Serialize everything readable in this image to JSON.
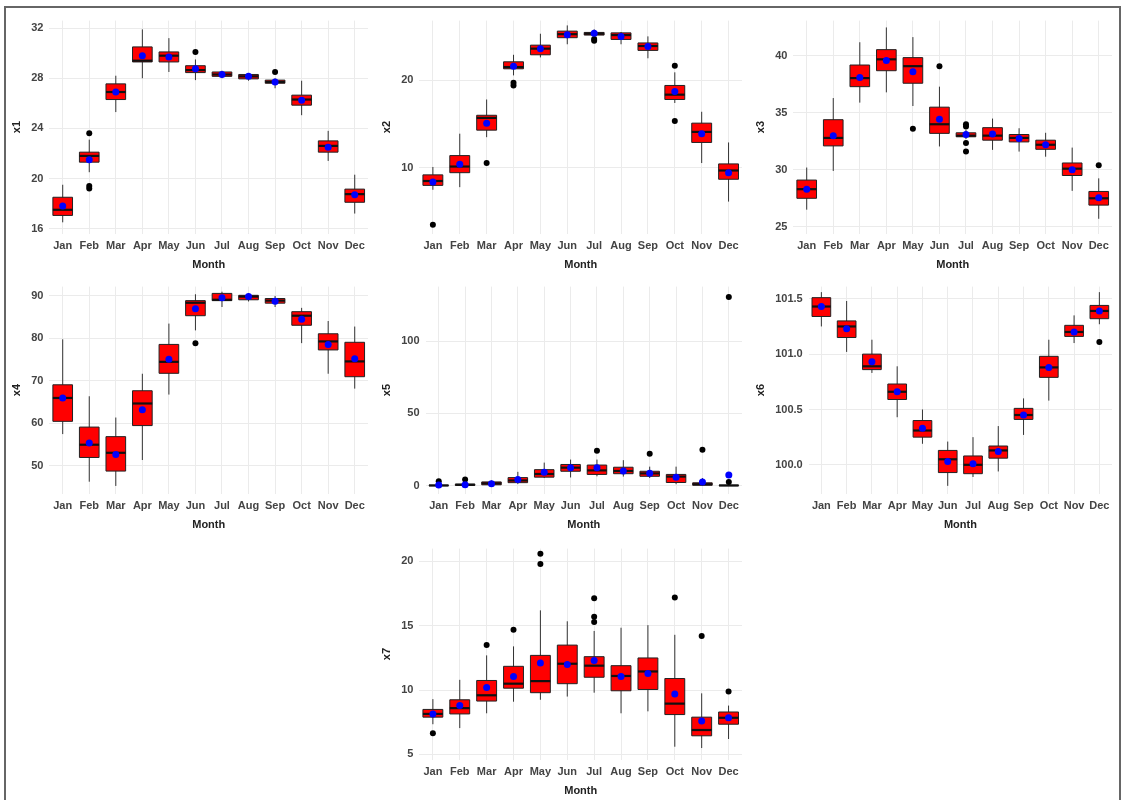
{
  "chart_data": [
    {
      "type": "box",
      "xlabel": "Month",
      "ylabel": "x1",
      "categories": [
        "Jan",
        "Feb",
        "Mar",
        "Apr",
        "May",
        "Jun",
        "Jul",
        "Aug",
        "Sep",
        "Oct",
        "Nov",
        "Dec"
      ],
      "color": "#ff0000",
      "grid": true,
      "ylim": [
        15.6,
        32.6
      ],
      "yticks": [
        16,
        20,
        24,
        28,
        32
      ],
      "boxes": [
        {
          "low": 16.5,
          "q1": 17.05,
          "median": 17.5,
          "q3": 18.5,
          "high": 19.5,
          "mean": 17.8
        },
        {
          "low": 20.5,
          "q1": 21.3,
          "median": 21.8,
          "q3": 22.1,
          "high": 23.1,
          "mean": 21.5,
          "outliers": [
            23.6,
            19.4,
            19.2
          ]
        },
        {
          "low": 25.3,
          "q1": 26.3,
          "median": 26.9,
          "q3": 27.55,
          "high": 28.2,
          "mean": 26.9
        },
        {
          "low": 28.0,
          "q1": 29.3,
          "median": 29.4,
          "q3": 30.5,
          "high": 31.9,
          "mean": 29.8
        },
        {
          "low": 28.5,
          "q1": 29.3,
          "median": 29.8,
          "q3": 30.1,
          "high": 31.2,
          "mean": 29.7
        },
        {
          "low": 27.85,
          "q1": 28.45,
          "median": 28.65,
          "q3": 29.0,
          "high": 29.5,
          "mean": 28.75,
          "outliers": [
            30.1
          ]
        },
        {
          "low": 28.0,
          "q1": 28.15,
          "median": 28.3,
          "q3": 28.5,
          "high": 28.6,
          "mean": 28.3
        },
        {
          "low": 27.8,
          "q1": 27.95,
          "median": 28.15,
          "q3": 28.3,
          "high": 28.4,
          "mean": 28.15
        },
        {
          "low": 27.2,
          "q1": 27.6,
          "median": 27.7,
          "q3": 27.85,
          "high": 28.0,
          "mean": 27.7,
          "outliers": [
            28.5
          ]
        },
        {
          "low": 25.05,
          "q1": 25.85,
          "median": 26.3,
          "q3": 26.65,
          "high": 27.8,
          "mean": 26.25
        },
        {
          "low": 21.4,
          "q1": 22.1,
          "median": 22.6,
          "q3": 23.0,
          "high": 23.8,
          "mean": 22.5
        },
        {
          "low": 17.2,
          "q1": 18.1,
          "median": 18.75,
          "q3": 19.15,
          "high": 20.3,
          "mean": 18.7
        }
      ]
    },
    {
      "type": "box",
      "xlabel": "Month",
      "ylabel": "x2",
      "categories": [
        "Jan",
        "Feb",
        "Mar",
        "Apr",
        "May",
        "Jun",
        "Jul",
        "Aug",
        "Sep",
        "Oct",
        "Nov",
        "Dec"
      ],
      "color": "#ff0000",
      "grid": true,
      "ylim": [
        2.5,
        26.8
      ],
      "yticks": [
        10,
        20
      ],
      "boxes": [
        {
          "low": 7.5,
          "q1": 8.0,
          "median": 8.5,
          "q3": 9.2,
          "high": 10.1,
          "mean": 8.4,
          "outliers": [
            3.5
          ]
        },
        {
          "low": 7.8,
          "q1": 9.45,
          "median": 10.15,
          "q3": 11.4,
          "high": 13.9,
          "mean": 10.4
        },
        {
          "low": 13.5,
          "q1": 14.3,
          "median": 15.7,
          "q3": 16.0,
          "high": 17.8,
          "mean": 15.1,
          "outliers": [
            10.55
          ]
        },
        {
          "low": 20.55,
          "q1": 21.3,
          "median": 21.5,
          "q3": 22.1,
          "high": 22.9,
          "mean": 21.6,
          "outliers": [
            19.7,
            19.4
          ]
        },
        {
          "low": 22.6,
          "q1": 22.9,
          "median": 23.6,
          "q3": 24.0,
          "high": 25.3,
          "mean": 23.6
        },
        {
          "low": 24.1,
          "q1": 24.85,
          "median": 25.25,
          "q3": 25.6,
          "high": 26.25,
          "mean": 25.2
        },
        {
          "low": 25.0,
          "q1": 25.15,
          "median": 25.3,
          "q3": 25.45,
          "high": 25.8,
          "mean": 25.35,
          "outliers": [
            24.7,
            24.5
          ]
        },
        {
          "low": 24.1,
          "q1": 24.65,
          "median": 25.15,
          "q3": 25.4,
          "high": 25.5,
          "mean": 25.0
        },
        {
          "low": 22.5,
          "q1": 23.4,
          "median": 23.9,
          "q3": 24.25,
          "high": 25.0,
          "mean": 23.85
        },
        {
          "low": 17.4,
          "q1": 17.8,
          "median": 18.35,
          "q3": 19.4,
          "high": 20.9,
          "mean": 18.7,
          "outliers": [
            21.65,
            15.35
          ]
        },
        {
          "low": 10.55,
          "q1": 12.9,
          "median": 14.1,
          "q3": 15.1,
          "high": 16.4,
          "mean": 13.9
        },
        {
          "low": 6.15,
          "q1": 8.7,
          "median": 9.7,
          "q3": 10.45,
          "high": 12.9,
          "mean": 9.45
        }
      ]
    },
    {
      "type": "box",
      "xlabel": "Month",
      "ylabel": "x3",
      "categories": [
        "Jan",
        "Feb",
        "Mar",
        "Apr",
        "May",
        "Jun",
        "Jul",
        "Aug",
        "Sep",
        "Oct",
        "Nov",
        "Dec"
      ],
      "color": "#ff0000",
      "grid": true,
      "ylim": [
        24.4,
        43.1
      ],
      "yticks": [
        25,
        30,
        35,
        40
      ],
      "boxes": [
        {
          "low": 26.5,
          "q1": 27.5,
          "median": 28.3,
          "q3": 29.1,
          "high": 30.2,
          "mean": 28.3
        },
        {
          "low": 29.9,
          "q1": 32.1,
          "median": 32.8,
          "q3": 34.4,
          "high": 36.3,
          "mean": 33.0
        },
        {
          "low": 35.9,
          "q1": 37.3,
          "median": 38.05,
          "q3": 39.2,
          "high": 41.2,
          "mean": 38.1
        },
        {
          "low": 36.8,
          "q1": 38.7,
          "median": 39.7,
          "q3": 40.55,
          "high": 42.5,
          "mean": 39.6
        },
        {
          "low": 35.6,
          "q1": 37.6,
          "median": 39.1,
          "q3": 39.85,
          "high": 41.65,
          "mean": 38.6,
          "outliers": [
            33.6
          ]
        },
        {
          "low": 32.05,
          "q1": 33.2,
          "median": 34.0,
          "q3": 35.5,
          "high": 37.3,
          "mean": 34.45,
          "outliers": [
            39.1
          ]
        },
        {
          "low": 32.7,
          "q1": 32.9,
          "median": 33.0,
          "q3": 33.25,
          "high": 33.5,
          "mean": 33.1,
          "outliers": [
            34.0,
            33.8,
            32.35,
            31.6
          ]
        },
        {
          "low": 31.75,
          "q1": 32.6,
          "median": 33.0,
          "q3": 33.7,
          "high": 34.5,
          "mean": 33.15
        },
        {
          "low": 31.6,
          "q1": 32.45,
          "median": 32.8,
          "q3": 33.1,
          "high": 33.65,
          "mean": 32.75
        },
        {
          "low": 31.15,
          "q1": 31.8,
          "median": 32.2,
          "q3": 32.6,
          "high": 33.25,
          "mean": 32.2
        },
        {
          "low": 28.15,
          "q1": 29.5,
          "median": 30.1,
          "q3": 30.6,
          "high": 31.95,
          "mean": 30.0
        },
        {
          "low": 25.7,
          "q1": 26.9,
          "median": 27.5,
          "q3": 28.1,
          "high": 29.25,
          "mean": 27.55,
          "outliers": [
            30.4
          ]
        }
      ]
    },
    {
      "type": "box",
      "xlabel": "Month",
      "ylabel": "x4",
      "categories": [
        "Jan",
        "Feb",
        "Mar",
        "Apr",
        "May",
        "Jun",
        "Jul",
        "Aug",
        "Sep",
        "Oct",
        "Nov",
        "Dec"
      ],
      "color": "#ff0000",
      "grid": true,
      "ylim": [
        43.5,
        92.2
      ],
      "yticks": [
        50,
        60,
        70,
        80,
        90
      ],
      "boxes": [
        {
          "low": 57.5,
          "q1": 60.5,
          "median": 66.0,
          "q3": 69.1,
          "high": 79.8,
          "mean": 66.0
        },
        {
          "low": 46.3,
          "q1": 52.0,
          "median": 55.0,
          "q3": 59.15,
          "high": 66.4,
          "mean": 55.4
        },
        {
          "low": 45.3,
          "q1": 48.8,
          "median": 53.1,
          "q3": 56.9,
          "high": 61.4,
          "mean": 52.7
        },
        {
          "low": 51.4,
          "q1": 59.5,
          "median": 64.7,
          "q3": 67.7,
          "high": 71.7,
          "mean": 63.2
        },
        {
          "low": 66.8,
          "q1": 71.8,
          "median": 74.5,
          "q3": 78.6,
          "high": 83.5,
          "mean": 75.1
        },
        {
          "low": 81.9,
          "q1": 85.35,
          "median": 88.4,
          "q3": 88.9,
          "high": 90.4,
          "mean": 87.0,
          "outliers": [
            78.9
          ]
        },
        {
          "low": 87.4,
          "q1": 88.9,
          "median": 89.1,
          "q3": 90.6,
          "high": 91.0,
          "mean": 89.6
        },
        {
          "low": 88.7,
          "q1": 89.1,
          "median": 89.85,
          "q3": 90.15,
          "high": 90.7,
          "mean": 89.85
        },
        {
          "low": 87.4,
          "q1": 88.3,
          "median": 88.9,
          "q3": 89.4,
          "high": 90.0,
          "mean": 88.75
        },
        {
          "low": 78.9,
          "q1": 83.1,
          "median": 85.35,
          "q3": 86.3,
          "high": 87.2,
          "mean": 84.5
        },
        {
          "low": 71.7,
          "q1": 77.3,
          "median": 79.3,
          "q3": 81.1,
          "high": 84.1,
          "mean": 78.6
        },
        {
          "low": 68.2,
          "q1": 71.0,
          "median": 74.6,
          "q3": 79.1,
          "high": 82.8,
          "mean": 75.2
        }
      ]
    },
    {
      "type": "box",
      "xlabel": "Month",
      "ylabel": "x5",
      "categories": [
        "Jan",
        "Feb",
        "Mar",
        "Apr",
        "May",
        "Jun",
        "Jul",
        "Aug",
        "Sep",
        "Oct",
        "Nov",
        "Dec"
      ],
      "color": "#ff0000",
      "grid": true,
      "ylim": [
        -5.6,
        138
      ],
      "yticks": [
        0,
        50,
        100
      ],
      "boxes": [
        {
          "low": 0,
          "q1": 0,
          "median": 0,
          "q3": 0.3,
          "high": 0.8,
          "mean": 0.3,
          "outliers": [
            3
          ]
        },
        {
          "low": 0,
          "q1": 0.1,
          "median": 0.5,
          "q3": 1,
          "high": 2,
          "mean": 0.5,
          "outliers": [
            4.1
          ]
        },
        {
          "low": 0,
          "q1": 0.5,
          "median": 1.5,
          "q3": 2.5,
          "high": 3.5,
          "mean": 1.3
        },
        {
          "low": 1,
          "q1": 2,
          "median": 3.5,
          "q3": 5.5,
          "high": 9.5,
          "mean": 4.1
        },
        {
          "low": 5.2,
          "q1": 5.8,
          "median": 8,
          "q3": 11,
          "high": 15.9,
          "mean": 9.2
        },
        {
          "low": 5.6,
          "q1": 9.9,
          "median": 12.4,
          "q3": 14.6,
          "high": 18,
          "mean": 12.4
        },
        {
          "low": 6.4,
          "q1": 7.7,
          "median": 10.5,
          "q3": 14.2,
          "high": 18,
          "mean": 12.4,
          "outliers": [
            24.2
          ]
        },
        {
          "low": 6.2,
          "q1": 8.2,
          "median": 10.1,
          "q3": 12.7,
          "high": 17.6,
          "mean": 10.1
        },
        {
          "low": 5.2,
          "q1": 6.4,
          "median": 8.4,
          "q3": 9.9,
          "high": 13.1,
          "mean": 8.6,
          "outliers": [
            22.1
          ]
        },
        {
          "low": 0.9,
          "q1": 2.1,
          "median": 6.2,
          "q3": 7.7,
          "high": 13.1,
          "mean": 5.8
        },
        {
          "low": 0,
          "q1": 0.2,
          "median": 0.9,
          "q3": 1.9,
          "high": 5.2,
          "mean": 2.4,
          "outliers": [
            24.9
          ]
        },
        {
          "low": 0,
          "q1": 0,
          "median": 0,
          "q3": 0.3,
          "high": 0.8,
          "mean": 7.3,
          "outliers": [
            130.7,
            2.4
          ]
        }
      ]
    },
    {
      "type": "box",
      "xlabel": "Month",
      "ylabel": "x6",
      "categories": [
        "Jan",
        "Feb",
        "Mar",
        "Apr",
        "May",
        "Jun",
        "Jul",
        "Aug",
        "Sep",
        "Oct",
        "Nov",
        "Dec"
      ],
      "color": "#ff0000",
      "grid": true,
      "ylim": [
        99.74,
        101.61
      ],
      "yticks": [
        {
          "value": 100,
          "label": "100.0"
        },
        100.5,
        {
          "value": 101,
          "label": "101.0"
        },
        101.5
      ],
      "boxes": [
        {
          "low": 101.25,
          "q1": 101.34,
          "median": 101.43,
          "q3": 101.51,
          "high": 101.56,
          "mean": 101.43
        },
        {
          "low": 101.02,
          "q1": 101.15,
          "median": 101.25,
          "q3": 101.3,
          "high": 101.48,
          "mean": 101.23
        },
        {
          "low": 100.83,
          "q1": 100.86,
          "median": 100.89,
          "q3": 101.0,
          "high": 101.13,
          "mean": 100.93
        },
        {
          "low": 100.43,
          "q1": 100.59,
          "median": 100.66,
          "q3": 100.73,
          "high": 100.89,
          "mean": 100.66
        },
        {
          "low": 100.19,
          "q1": 100.25,
          "median": 100.31,
          "q3": 100.4,
          "high": 100.5,
          "mean": 100.33
        },
        {
          "low": 99.81,
          "q1": 99.93,
          "median": 100.05,
          "q3": 100.13,
          "high": 100.21,
          "mean": 100.03
        },
        {
          "low": 99.89,
          "q1": 99.92,
          "median": 100.0,
          "q3": 100.08,
          "high": 100.25,
          "mean": 100.01
        },
        {
          "low": 99.94,
          "q1": 100.06,
          "median": 100.13,
          "q3": 100.17,
          "high": 100.35,
          "mean": 100.12
        },
        {
          "low": 100.27,
          "q1": 100.41,
          "median": 100.45,
          "q3": 100.51,
          "high": 100.6,
          "mean": 100.45
        },
        {
          "low": 100.58,
          "q1": 100.79,
          "median": 100.88,
          "q3": 100.98,
          "high": 101.13,
          "mean": 100.88
        },
        {
          "low": 101.1,
          "q1": 101.16,
          "median": 101.2,
          "q3": 101.26,
          "high": 101.35,
          "mean": 101.2
        },
        {
          "low": 101.27,
          "q1": 101.32,
          "median": 101.39,
          "q3": 101.44,
          "high": 101.56,
          "mean": 101.39,
          "outliers": [
            101.11
          ]
        }
      ]
    },
    {
      "type": "box",
      "xlabel": "Month",
      "ylabel": "x7",
      "categories": [
        "Jan",
        "Feb",
        "Mar",
        "Apr",
        "May",
        "Jun",
        "Jul",
        "Aug",
        "Sep",
        "Oct",
        "Nov",
        "Dec"
      ],
      "color": "#ff0000",
      "grid": true,
      "ylim": [
        4.6,
        21.0
      ],
      "yticks": [
        5,
        10,
        15,
        20
      ],
      "boxes": [
        {
          "low": 7.35,
          "q1": 7.9,
          "median": 8.15,
          "q3": 8.5,
          "high": 9.3,
          "mean": 8.15,
          "outliers": [
            6.65
          ]
        },
        {
          "low": 7.05,
          "q1": 8.15,
          "median": 8.6,
          "q3": 9.25,
          "high": 10.8,
          "mean": 8.8
        },
        {
          "low": 8.2,
          "q1": 9.15,
          "median": 9.6,
          "q3": 10.75,
          "high": 12.7,
          "mean": 10.2,
          "outliers": [
            13.5
          ]
        },
        {
          "low": 9.1,
          "q1": 10.15,
          "median": 10.5,
          "q3": 11.85,
          "high": 13.4,
          "mean": 11.05,
          "outliers": [
            14.7
          ]
        },
        {
          "low": 9.25,
          "q1": 9.8,
          "median": 10.7,
          "q3": 12.7,
          "high": 16.2,
          "mean": 12.1,
          "outliers": [
            20.6,
            19.8
          ]
        },
        {
          "low": 9.5,
          "q1": 10.5,
          "median": 12.05,
          "q3": 13.5,
          "high": 15.35,
          "mean": 12.0
        },
        {
          "low": 9.8,
          "q1": 11.0,
          "median": 11.9,
          "q3": 12.6,
          "high": 14.6,
          "mean": 12.3,
          "outliers": [
            17.15,
            15.7,
            15.3
          ]
        },
        {
          "low": 8.2,
          "q1": 9.95,
          "median": 11.1,
          "q3": 11.9,
          "high": 14.85,
          "mean": 11.05
        },
        {
          "low": 8.35,
          "q1": 10.05,
          "median": 11.45,
          "q3": 12.5,
          "high": 15.05,
          "mean": 11.3
        },
        {
          "low": 5.6,
          "q1": 8.1,
          "median": 8.95,
          "q3": 10.9,
          "high": 14.3,
          "mean": 9.7,
          "outliers": [
            17.2
          ]
        },
        {
          "low": 5.5,
          "q1": 6.45,
          "median": 6.9,
          "q3": 7.9,
          "high": 9.75,
          "mean": 7.6,
          "outliers": [
            14.2
          ]
        },
        {
          "low": 6.2,
          "q1": 7.35,
          "median": 7.85,
          "q3": 8.3,
          "high": 8.8,
          "mean": 7.85,
          "outliers": [
            9.9
          ]
        }
      ]
    }
  ]
}
